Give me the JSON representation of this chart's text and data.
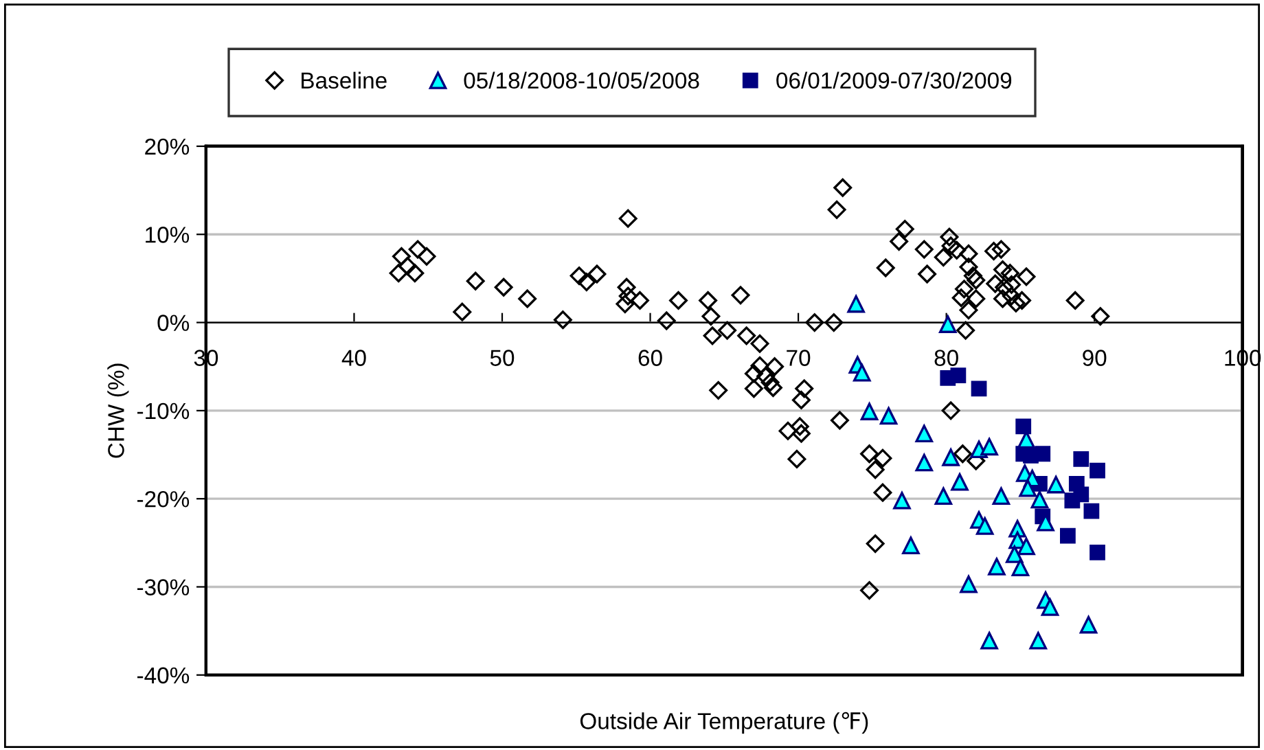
{
  "chart_data": {
    "type": "scatter",
    "xlabel": "Outside Air Temperature (℉)",
    "ylabel": "CHW (%)",
    "xlim": [
      30,
      100
    ],
    "xticks": [
      30,
      40,
      50,
      60,
      70,
      80,
      90,
      100
    ],
    "ylim": [
      -40,
      20
    ],
    "yticks": [
      {
        "value": -40,
        "label": "-40%"
      },
      {
        "value": -30,
        "label": "-30%"
      },
      {
        "value": -20,
        "label": "-20%"
      },
      {
        "value": -10,
        "label": "-10%"
      },
      {
        "value": 0,
        "label": "0%"
      },
      {
        "value": 10,
        "label": "10%"
      },
      {
        "value": 20,
        "label": "20%"
      }
    ],
    "grid": "y",
    "legend": "top",
    "series": [
      {
        "name": "Baseline",
        "color": "#000000",
        "marker": "diamond",
        "x": [
          43.0,
          43.2,
          43.6,
          44.1,
          44.3,
          44.9,
          47.3,
          48.2,
          50.1,
          51.7,
          54.1,
          55.2,
          55.7,
          56.4,
          58.5,
          58.4,
          58.5,
          58.3,
          59.3,
          61.1,
          61.9,
          63.9,
          64.1,
          64.2,
          65.2,
          64.6,
          66.1,
          66.5,
          67.4,
          67.4,
          67.0,
          67.8,
          68.4,
          68.1,
          67.0,
          68.3,
          71.1,
          72.4,
          70.4,
          70.2,
          69.3,
          70.1,
          70.2,
          69.9,
          72.8,
          72.6,
          73.0,
          75.9,
          76.8,
          77.2,
          74.8,
          75.7,
          75.2,
          75.7,
          75.2,
          74.8,
          78.5,
          78.7,
          79.8,
          80.2,
          80.3,
          80.7,
          81.5,
          81.5,
          81.8,
          82.0,
          81.2,
          81.0,
          82.0,
          81.5,
          81.3,
          83.2,
          83.7,
          83.8,
          84.3,
          85.4,
          83.3,
          83.9,
          84.4,
          83.8,
          84.4,
          84.7,
          85.1,
          88.7,
          90.4,
          80.3,
          81.1,
          82.0
        ],
        "values": [
          5.6,
          7.5,
          6.4,
          5.6,
          8.3,
          7.5,
          1.2,
          4.7,
          4.0,
          2.7,
          0.3,
          5.3,
          4.6,
          5.5,
          11.8,
          4.0,
          3.0,
          2.1,
          2.5,
          0.2,
          2.5,
          2.5,
          0.7,
          -1.5,
          -0.9,
          -7.7,
          3.1,
          -1.5,
          -2.4,
          -4.9,
          -5.8,
          -6.1,
          -5.0,
          -6.8,
          -7.5,
          -7.4,
          0.0,
          0.0,
          -7.5,
          -8.8,
          -12.3,
          -11.8,
          -12.6,
          -15.5,
          -11.1,
          12.8,
          15.3,
          6.2,
          9.2,
          10.6,
          -14.9,
          -15.4,
          -16.7,
          -19.3,
          -25.1,
          -30.4,
          8.3,
          5.5,
          7.4,
          9.7,
          8.7,
          8.2,
          7.8,
          6.3,
          5.3,
          4.8,
          3.8,
          2.8,
          2.7,
          1.4,
          -0.9,
          8.1,
          8.3,
          6.0,
          5.6,
          5.2,
          4.4,
          4.0,
          4.3,
          2.7,
          3.0,
          2.2,
          2.5,
          2.5,
          0.7,
          -10.0,
          -14.9,
          -15.7
        ]
      },
      {
        "name": "05/18/2008-10/05/2008",
        "color": "#00ffff",
        "marker": "triangle",
        "x": [
          73.9,
          74.0,
          74.3,
          74.8,
          76.1,
          77.0,
          80.1,
          78.5,
          78.5,
          77.6,
          79.8,
          80.3,
          80.9,
          82.2,
          82.9,
          81.5,
          82.2,
          82.6,
          83.7,
          83.4,
          82.9,
          85.4,
          85.3,
          85.8,
          85.5,
          86.3,
          87.4,
          86.7,
          84.8,
          84.8,
          85.4,
          84.6,
          85.0,
          86.7,
          87.0,
          86.2,
          89.6
        ],
        "values": [
          2.1,
          -4.8,
          -5.7,
          -10.1,
          -10.6,
          -20.2,
          -0.2,
          -12.6,
          -15.9,
          -25.3,
          -19.7,
          -15.3,
          -18.1,
          -14.4,
          -14.1,
          -29.7,
          -22.4,
          -23.1,
          -19.7,
          -27.7,
          -36.1,
          -13.3,
          -17.1,
          -17.7,
          -18.8,
          -20.1,
          -18.4,
          -22.7,
          -23.4,
          -24.7,
          -25.4,
          -26.3,
          -27.8,
          -31.5,
          -32.3,
          -36.1,
          -34.3
        ]
      },
      {
        "name": "06/01/2009-07/30/2009",
        "color": "#000080",
        "marker": "square",
        "x": [
          80.1,
          80.8,
          82.2,
          85.2,
          85.2,
          85.7,
          86.5,
          89.1,
          90.2,
          86.3,
          88.8,
          89.1,
          88.5,
          89.8,
          86.5,
          88.2,
          90.2
        ],
        "values": [
          -6.3,
          -6.0,
          -7.5,
          -11.8,
          -14.9,
          -15.1,
          -14.9,
          -15.5,
          -16.8,
          -18.3,
          -18.3,
          -19.5,
          -20.2,
          -21.4,
          -22.0,
          -24.2,
          -26.1
        ]
      }
    ]
  }
}
